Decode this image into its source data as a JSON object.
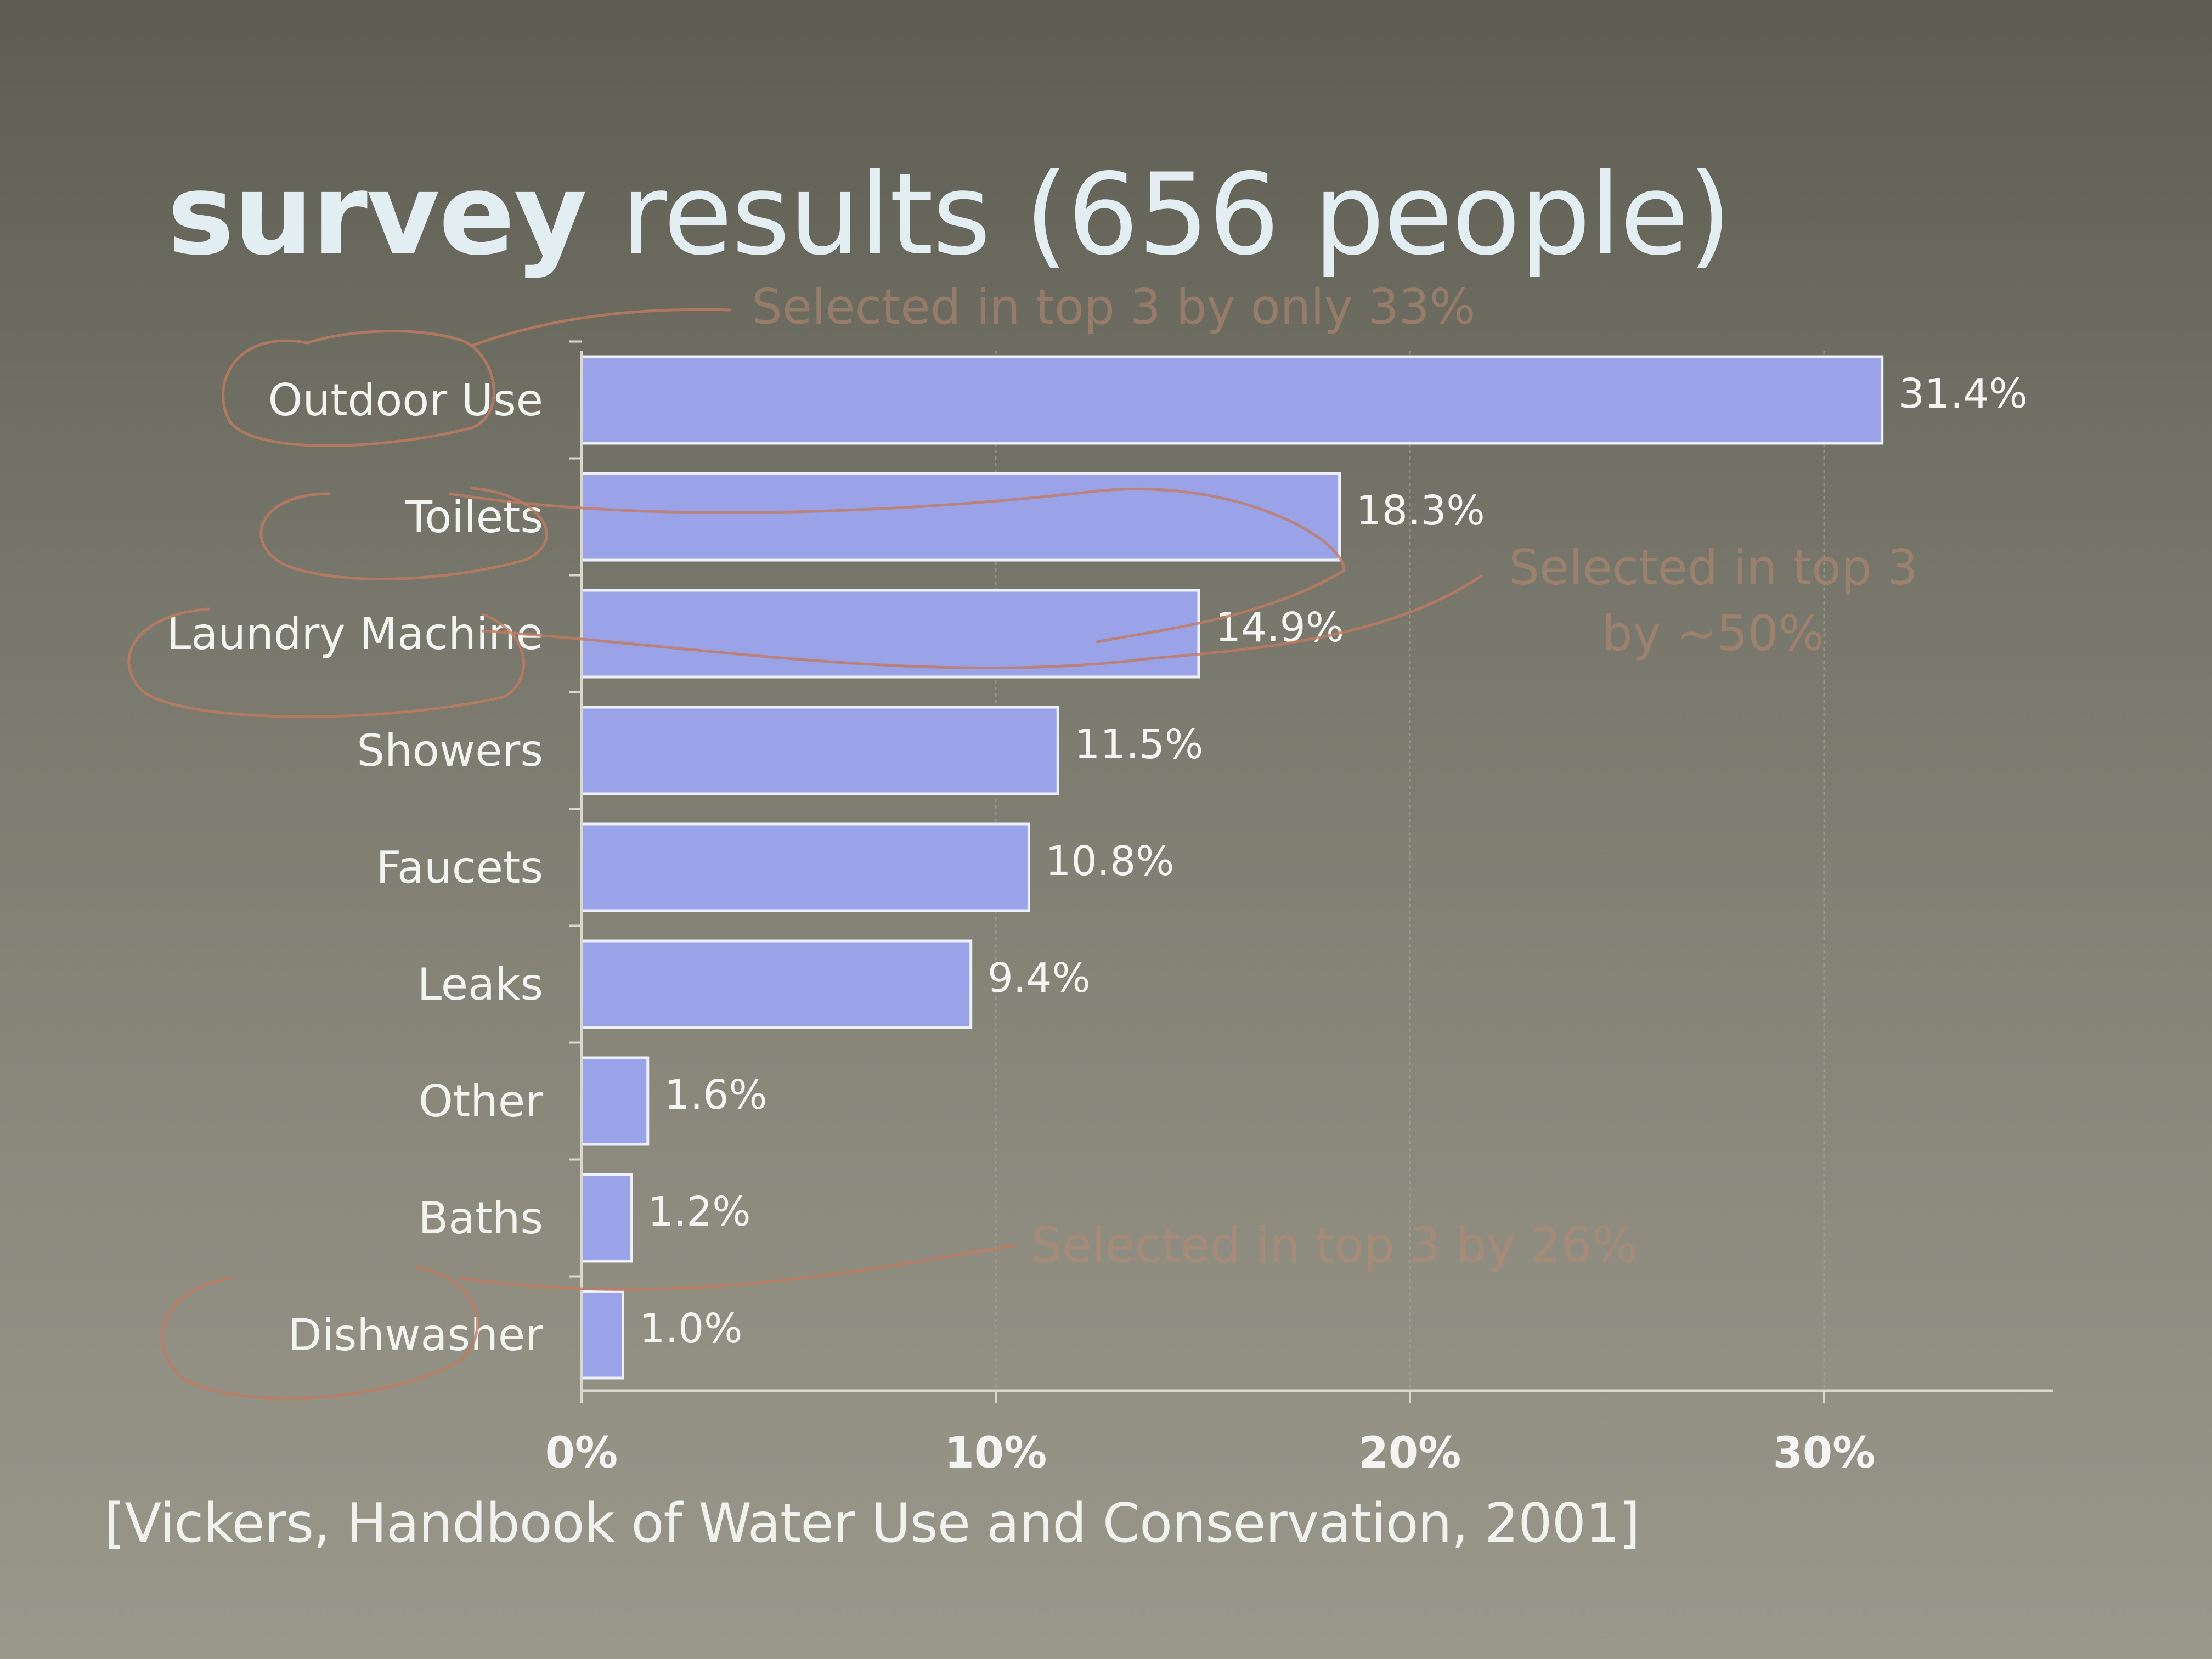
{
  "slide": {
    "title_bold": "survey",
    "title_rest": " results (656 people)",
    "citation": "[Vickers, Handbook of Water Use and Conservation, 2001]"
  },
  "annotations": [
    "Selected in top 3 by only 33%",
    "Selected in top 3",
    "by ~50%",
    "Selected in top 3 by 26%"
  ],
  "colors": {
    "bar_fill": "#9aa3e8",
    "bar_stroke": "#eef0ff",
    "axis": "#d9d8cc",
    "grid": "#a8a79b",
    "handwriting": "#c27b62"
  },
  "chart_data": {
    "type": "bar",
    "orientation": "horizontal",
    "categories": [
      "Outdoor Use",
      "Toilets",
      "Laundry Machine",
      "Showers",
      "Faucets",
      "Leaks",
      "Other",
      "Baths",
      "Dishwasher"
    ],
    "values": [
      31.4,
      18.3,
      14.9,
      11.5,
      10.8,
      9.4,
      1.6,
      1.2,
      1.0
    ],
    "value_labels": [
      "31.4%",
      "18.3%",
      "14.9%",
      "11.5%",
      "10.8%",
      "9.4%",
      "1.6%",
      "1.2%",
      "1.0%"
    ],
    "x_ticks": [
      "0%",
      "10%",
      "20%",
      "30%"
    ],
    "x_tick_values": [
      0,
      10,
      20,
      30
    ],
    "xlim": [
      0,
      35
    ],
    "grid": true
  }
}
